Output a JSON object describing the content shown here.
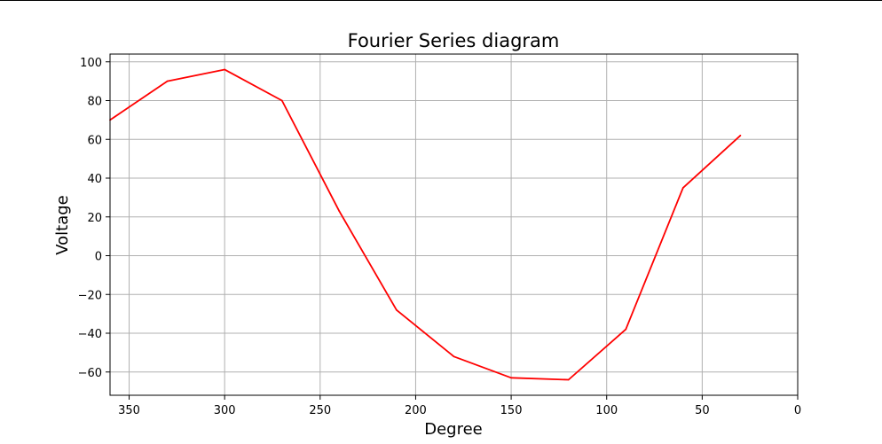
{
  "chart_data": {
    "type": "line",
    "title": "Fourier Series diagram",
    "xlabel": "Degree",
    "ylabel": "Voltage",
    "xlim": [
      360,
      0
    ],
    "ylim": [
      -72,
      104
    ],
    "x_ticks": [
      350,
      300,
      250,
      200,
      150,
      100,
      50,
      0
    ],
    "y_ticks": [
      100,
      80,
      60,
      40,
      20,
      0,
      -20,
      -40,
      -60
    ],
    "grid": true,
    "series": [
      {
        "color": "#ff0000",
        "x": [
          360,
          330,
          300,
          270,
          240,
          210,
          180,
          150,
          120,
          90,
          60,
          30
        ],
        "y": [
          70,
          90,
          96,
          80,
          23,
          -28,
          -52,
          -63,
          -64,
          -38,
          35,
          62
        ]
      }
    ]
  }
}
